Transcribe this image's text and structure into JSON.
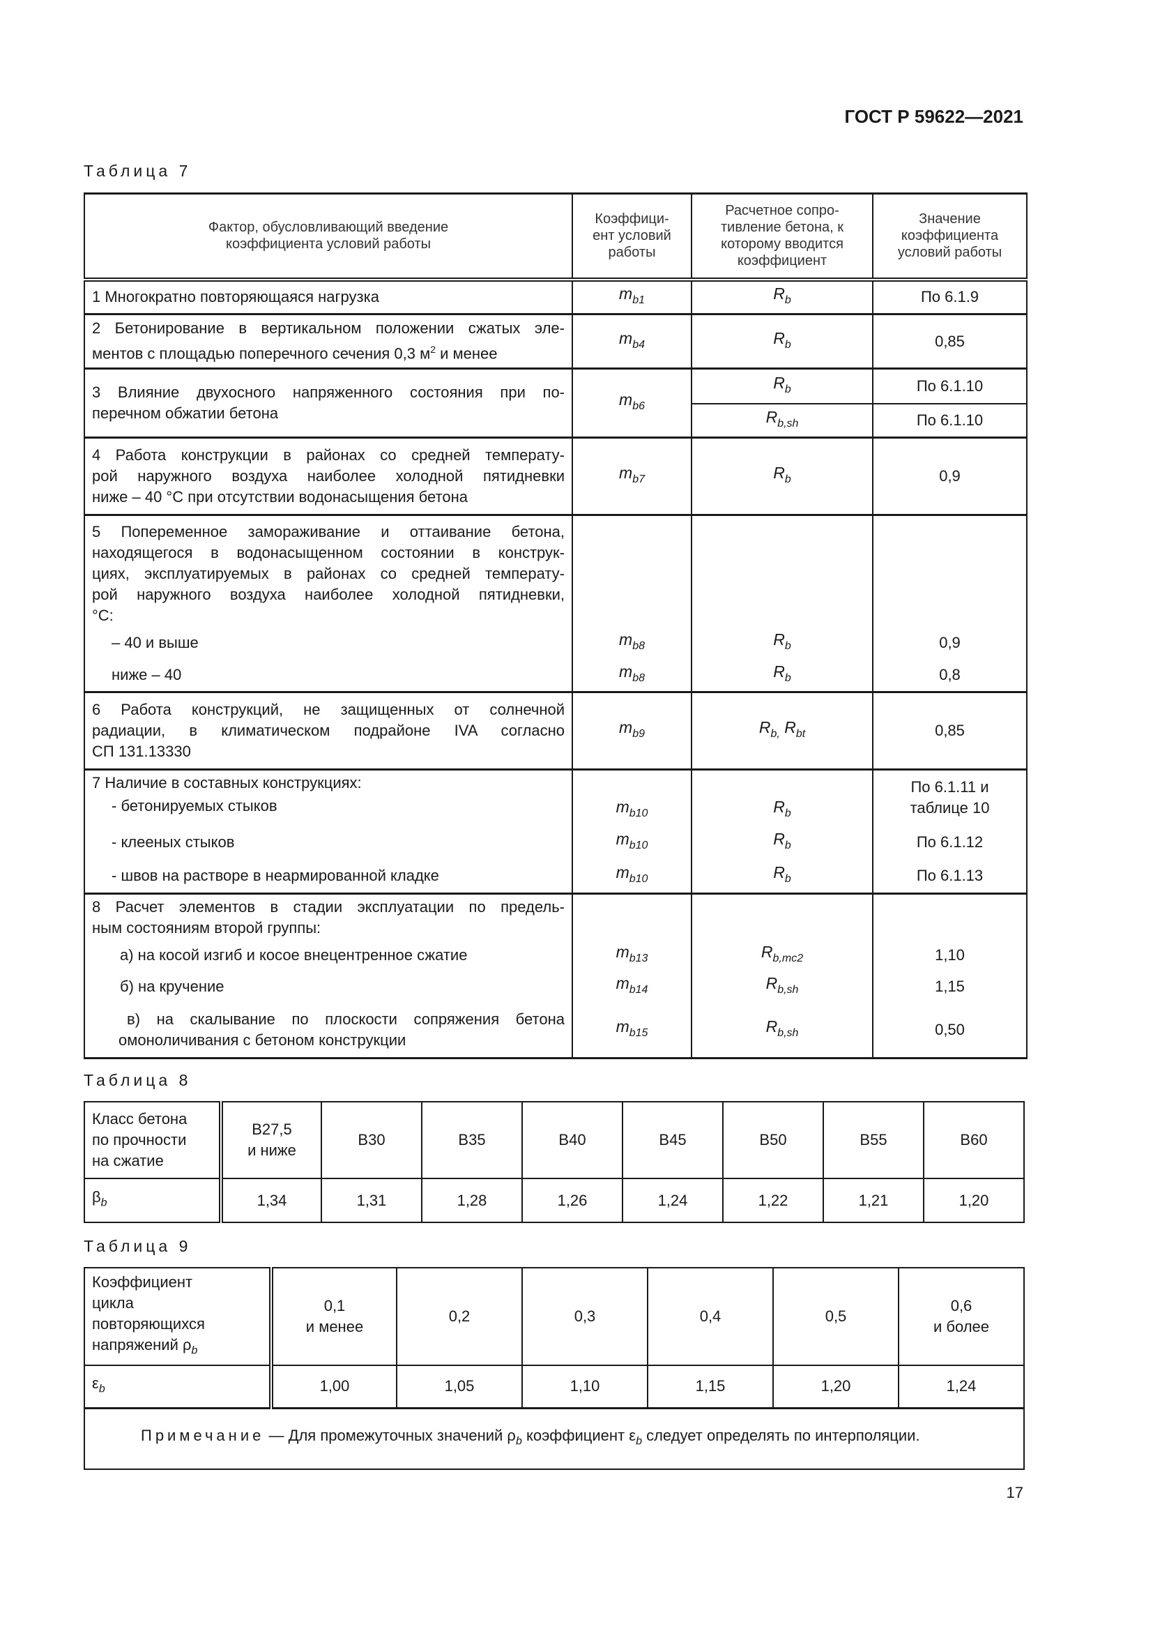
{
  "header": {
    "doc_code": "ГОСТ Р 59622—2021"
  },
  "table7": {
    "caption": "Таблица 7",
    "head": {
      "factor": [
        "Фактор, обусловливающий введение",
        "коэффициента условий работы"
      ],
      "coef": [
        "Коэффици-",
        "ент условий",
        "работы"
      ],
      "resistance": [
        "Расчетное сопро-",
        "тивление бетона, к",
        "которому вводится",
        "коэффициент"
      ],
      "value": [
        "Значение",
        "коэффициента",
        "условий работы"
      ]
    },
    "rows": [
      {
        "text": [
          "1 Многократно повторяющаяся нагрузка"
        ],
        "m": {
          "sym": "m",
          "sub": "b1"
        },
        "r": {
          "sym": "R",
          "sub": "b"
        },
        "v": "По 6.1.9"
      },
      {
        "text": [
          "2 Бетонирование в вертикальном положении сжатых эле-",
          "ментов с площадью поперечного сечения 0,3 м",
          "2",
          " и менее"
        ],
        "m": {
          "sym": "m",
          "sub": "b4"
        },
        "r": {
          "sym": "R",
          "sub": "b"
        },
        "v": "0,85"
      },
      {
        "text": [
          "3 Влияние двухосного напряженного состояния при по-",
          "перечном обжатии бетона"
        ],
        "m": {
          "sym": "m",
          "sub": "b6"
        },
        "r": [
          {
            "sym": "R",
            "sub": "b"
          },
          {
            "sym": "R",
            "sub": "b,sh"
          }
        ],
        "v": [
          "По 6.1.10",
          "По 6.1.10"
        ]
      },
      {
        "text": [
          "4 Работа конструкции в районах со средней температу-",
          "рой наружного воздуха наиболее холодной пятидневки",
          "ниже – 40 °C при отсутствии водонасыщения бетона"
        ],
        "m": {
          "sym": "m",
          "sub": "b7"
        },
        "r": {
          "sym": "R",
          "sub": "b"
        },
        "v": "0,9"
      },
      {
        "text": [
          "5 Попеременное замораживание и оттаивание бетона,",
          "находящегося в водонасыщенном состоянии в конструк-",
          "циях, эксплуатируемых в районах со средней температу-",
          "рой наружного воздуха наиболее холодной пятидневки,",
          "°C:"
        ],
        "subs": [
          {
            "label": "– 40 и выше",
            "m": {
              "sym": "m",
              "sub": "b8"
            },
            "r": {
              "sym": "R",
              "sub": "b"
            },
            "v": "0,9"
          },
          {
            "label": "ниже – 40",
            "m": {
              "sym": "m",
              "sub": "b8"
            },
            "r": {
              "sym": "R",
              "sub": "b"
            },
            "v": "0,8"
          }
        ]
      },
      {
        "text": [
          "6 Работа конструкций, не защищенных от солнечной",
          "радиации, в климатическом подрайоне IVA согласно",
          "СП 131.13330"
        ],
        "m": {
          "sym": "m",
          "sub": "b9"
        },
        "r": {
          "sym": "R",
          "sub": "b,",
          "sym2": "R",
          "sub2": "bt"
        },
        "v": "0,85"
      },
      {
        "text": [
          "7 Наличие в составных конструкциях:"
        ],
        "subs": [
          {
            "label": "- бетонируемых стыков",
            "m": {
              "sym": "m",
              "sub": "b10"
            },
            "r": {
              "sym": "R",
              "sub": "b"
            },
            "v": [
              "По 6.1.11 и",
              "таблице 10"
            ]
          },
          {
            "label": "- клееных стыков",
            "m": {
              "sym": "m",
              "sub": "b10"
            },
            "r": {
              "sym": "R",
              "sub": "b"
            },
            "v": "По 6.1.12"
          },
          {
            "label": "- швов на растворе в неармированной кладке",
            "m": {
              "sym": "m",
              "sub": "b10"
            },
            "r": {
              "sym": "R",
              "sub": "b"
            },
            "v": "По 6.1.13"
          }
        ]
      },
      {
        "text": [
          "8 Расчет элементов в стадии эксплуатации по предель-",
          "ным состояниям второй группы:"
        ],
        "subs": [
          {
            "label": [
              "а) на косой изгиб и косое внецентренное сжатие"
            ],
            "m": {
              "sym": "m",
              "sub": "b13"
            },
            "r": {
              "sym": "R",
              "sub": "b,mc2"
            },
            "v": "1,10"
          },
          {
            "label": [
              "б) на кручение"
            ],
            "m": {
              "sym": "m",
              "sub": "b14"
            },
            "r": {
              "sym": "R",
              "sub": "b,sh"
            },
            "v": "1,15"
          },
          {
            "label": [
              "в) на скалывание по плоскости сопряжения бетона",
              "омоноличивания с бетоном конструкции"
            ],
            "m": {
              "sym": "m",
              "sub": "b15"
            },
            "r": {
              "sym": "R",
              "sub": "b,sh"
            },
            "v": "0,50"
          }
        ]
      }
    ]
  },
  "table8": {
    "caption": "Таблица 8",
    "head_label": [
      "Класс бетона",
      "по прочности",
      "на сжатие"
    ],
    "classes": [
      [
        "B27,5",
        "и ниже"
      ],
      "B30",
      "B35",
      "B40",
      "B45",
      "B50",
      "B55",
      "B60"
    ],
    "row_label": {
      "sym": "β",
      "sub": "b"
    },
    "values": [
      "1,34",
      "1,31",
      "1,28",
      "1,26",
      "1,24",
      "1,22",
      "1,21",
      "1,20"
    ]
  },
  "table9": {
    "caption": "Таблица 9",
    "head_label": [
      "Коэффициент",
      "цикла",
      "повторяющихся",
      "напряжений ρ",
      "b"
    ],
    "rho": [
      [
        "0,1",
        "и менее"
      ],
      "0,2",
      "0,3",
      "0,4",
      "0,5",
      [
        "0,6",
        "и более"
      ]
    ],
    "row_label": {
      "sym": "ε",
      "sub": "b"
    },
    "values": [
      "1,00",
      "1,05",
      "1,10",
      "1,15",
      "1,20",
      "1,24"
    ],
    "note": {
      "title": "Примечание",
      "t1": " — Для промежуточных значений ρ",
      "s1": "b",
      "t2": " коэффициент ε",
      "s2": "b",
      "t3": " следует определять по интерполяции."
    }
  },
  "page_number": "17"
}
